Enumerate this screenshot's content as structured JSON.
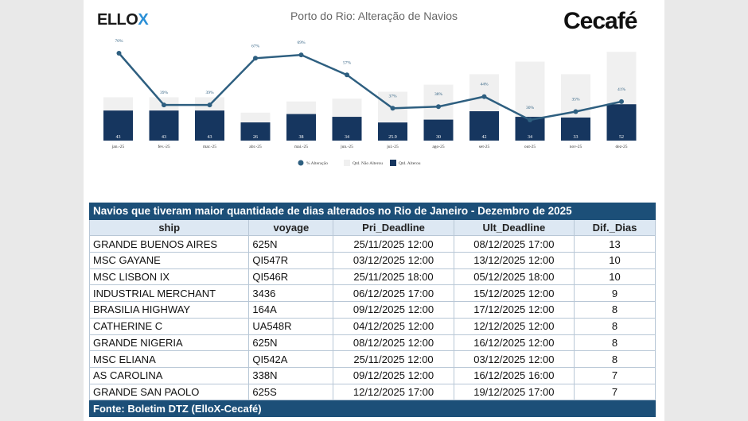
{
  "logos": {
    "left": "ElloX",
    "right": "Cecafé"
  },
  "chart_data": {
    "type": "bar",
    "title": "Porto do Rio: Alteração de Navios",
    "categories": [
      "jan.-25",
      "fev.-25",
      "mar.-25",
      "abr.-25",
      "mai.-25",
      "jun.-25",
      "jul.-25",
      "ago-25",
      "set-25",
      "out-25",
      "nov-25",
      "dez-25"
    ],
    "series": [
      {
        "name": "% Alteração",
        "type": "line",
        "values": [
          70,
          39,
          39,
          67,
          69,
          57,
          37,
          38,
          44,
          30,
          35,
          41
        ],
        "labels": [
          "70%",
          "39%",
          "39%",
          "67%",
          "69%",
          "57%",
          "37%",
          "38%",
          "44%",
          "30%",
          "35%",
          "41%"
        ],
        "color": "#2e5f80"
      },
      {
        "name": "Qtd. Não Alterou",
        "type": "bar",
        "values": [
          19,
          19,
          19,
          14,
          18,
          26,
          44,
          50,
          53,
          79,
          62,
          75
        ],
        "color": "#f0f0f0"
      },
      {
        "name": "Qtd. Alterou",
        "type": "bar",
        "values": [
          43,
          43,
          43,
          26,
          38,
          34,
          25.9,
          30,
          42,
          34,
          33,
          52
        ],
        "labels": [
          "43",
          "43",
          "43",
          "26",
          "38",
          "34",
          "25.9",
          "30",
          "42",
          "34",
          "33",
          "52"
        ],
        "color": "#16365f"
      }
    ],
    "legend": "bottom"
  },
  "table": {
    "title": "Navios que tiveram maior quantidade de dias alterados no Rio de Janeiro - Dezembro de 2025",
    "headers": [
      "ship",
      "voyage",
      "Pri_Deadline",
      "Ult_Deadline",
      "Dif._Dias"
    ],
    "rows": [
      [
        "GRANDE BUENOS AIRES",
        "625N",
        "25/11/2025 12:00",
        "08/12/2025 17:00",
        "13"
      ],
      [
        "MSC GAYANE",
        "QI547R",
        "03/12/2025 12:00",
        "13/12/2025 12:00",
        "10"
      ],
      [
        "MSC LISBON IX",
        "QI546R",
        "25/11/2025 18:00",
        "05/12/2025 18:00",
        "10"
      ],
      [
        "INDUSTRIAL MERCHANT",
        "3436",
        "06/12/2025 17:00",
        "15/12/2025 12:00",
        "9"
      ],
      [
        "BRASILIA HIGHWAY",
        "164A",
        "09/12/2025 12:00",
        "17/12/2025 12:00",
        "8"
      ],
      [
        "CATHERINE C",
        "UA548R",
        "04/12/2025 12:00",
        "12/12/2025 12:00",
        "8"
      ],
      [
        "GRANDE NIGERIA",
        "625N",
        "08/12/2025 12:00",
        "16/12/2025 12:00",
        "8"
      ],
      [
        "MSC ELIANA",
        "QI542A",
        "25/11/2025 12:00",
        "03/12/2025 12:00",
        "8"
      ],
      [
        "AS CAROLINA",
        "338N",
        "09/12/2025 12:00",
        "16/12/2025 16:00",
        "7"
      ],
      [
        "GRANDE SAN PAOLO",
        "625S",
        "12/12/2025 17:00",
        "19/12/2025 17:00",
        "7"
      ]
    ],
    "footer": "Fonte: Boletim DTZ (ElloX-Cecafé)"
  }
}
